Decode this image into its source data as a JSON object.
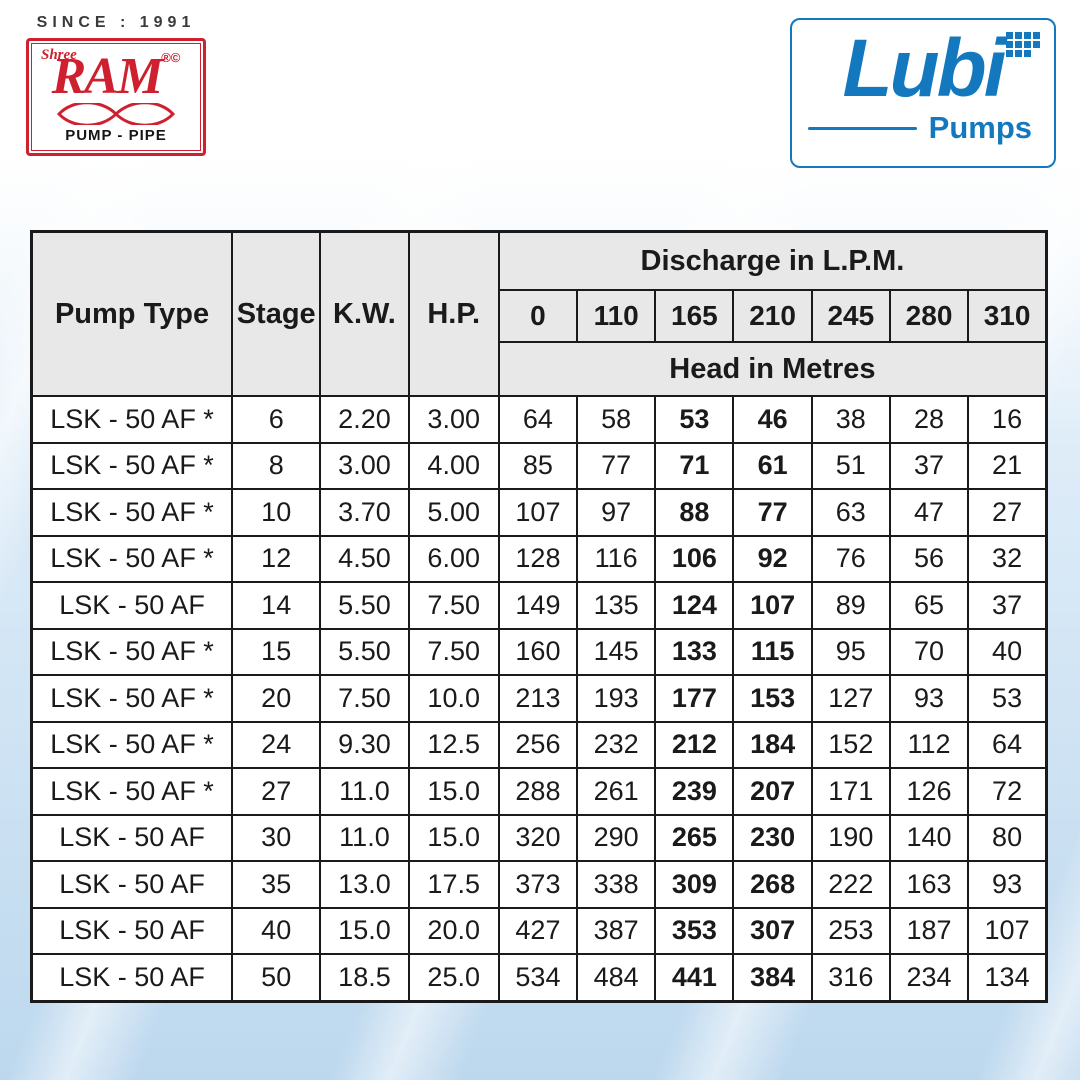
{
  "branding": {
    "since": "SINCE : 1991",
    "shree": "Shree",
    "ram": "RAM",
    "reg": "®©",
    "pump_pipe": "PUMP - PIPE",
    "lubi": "Lubi",
    "pumps": "Pumps"
  },
  "colors": {
    "brand_red": "#cf2030",
    "brand_blue": "#1478be",
    "table_header_bg": "#e8e8e8",
    "table_border": "#1a1a1a"
  },
  "table": {
    "col_headers": [
      "Pump Type",
      "Stage",
      "K.W.",
      "H.P."
    ],
    "discharge_header": "Discharge in L.P.M.",
    "discharge_values": [
      "0",
      "110",
      "165",
      "210",
      "245",
      "280",
      "310"
    ],
    "head_header": "Head in Metres",
    "rows": [
      {
        "pump_type": "LSK - 50 AF *",
        "stage": "6",
        "kw": "2.20",
        "hp": "3.00",
        "heads": [
          "64",
          "58",
          "53",
          "46",
          "38",
          "28",
          "16"
        ]
      },
      {
        "pump_type": "LSK - 50 AF *",
        "stage": "8",
        "kw": "3.00",
        "hp": "4.00",
        "heads": [
          "85",
          "77",
          "71",
          "61",
          "51",
          "37",
          "21"
        ]
      },
      {
        "pump_type": "LSK - 50 AF *",
        "stage": "10",
        "kw": "3.70",
        "hp": "5.00",
        "heads": [
          "107",
          "97",
          "88",
          "77",
          "63",
          "47",
          "27"
        ]
      },
      {
        "pump_type": "LSK - 50 AF *",
        "stage": "12",
        "kw": "4.50",
        "hp": "6.00",
        "heads": [
          "128",
          "116",
          "106",
          "92",
          "76",
          "56",
          "32"
        ]
      },
      {
        "pump_type": "LSK - 50 AF",
        "stage": "14",
        "kw": "5.50",
        "hp": "7.50",
        "heads": [
          "149",
          "135",
          "124",
          "107",
          "89",
          "65",
          "37"
        ]
      },
      {
        "pump_type": "LSK - 50 AF *",
        "stage": "15",
        "kw": "5.50",
        "hp": "7.50",
        "heads": [
          "160",
          "145",
          "133",
          "115",
          "95",
          "70",
          "40"
        ]
      },
      {
        "pump_type": "LSK - 50 AF *",
        "stage": "20",
        "kw": "7.50",
        "hp": "10.0",
        "heads": [
          "213",
          "193",
          "177",
          "153",
          "127",
          "93",
          "53"
        ]
      },
      {
        "pump_type": "LSK - 50 AF *",
        "stage": "24",
        "kw": "9.30",
        "hp": "12.5",
        "heads": [
          "256",
          "232",
          "212",
          "184",
          "152",
          "112",
          "64"
        ]
      },
      {
        "pump_type": "LSK - 50 AF *",
        "stage": "27",
        "kw": "11.0",
        "hp": "15.0",
        "heads": [
          "288",
          "261",
          "239",
          "207",
          "171",
          "126",
          "72"
        ]
      },
      {
        "pump_type": "LSK - 50 AF",
        "stage": "30",
        "kw": "11.0",
        "hp": "15.0",
        "heads": [
          "320",
          "290",
          "265",
          "230",
          "190",
          "140",
          "80"
        ]
      },
      {
        "pump_type": "LSK - 50 AF",
        "stage": "35",
        "kw": "13.0",
        "hp": "17.5",
        "heads": [
          "373",
          "338",
          "309",
          "268",
          "222",
          "163",
          "93"
        ]
      },
      {
        "pump_type": "LSK - 50 AF",
        "stage": "40",
        "kw": "15.0",
        "hp": "20.0",
        "heads": [
          "427",
          "387",
          "353",
          "307",
          "253",
          "187",
          "107"
        ]
      },
      {
        "pump_type": "LSK - 50 AF",
        "stage": "50",
        "kw": "18.5",
        "hp": "25.0",
        "heads": [
          "534",
          "484",
          "441",
          "384",
          "316",
          "234",
          "134"
        ]
      }
    ]
  }
}
